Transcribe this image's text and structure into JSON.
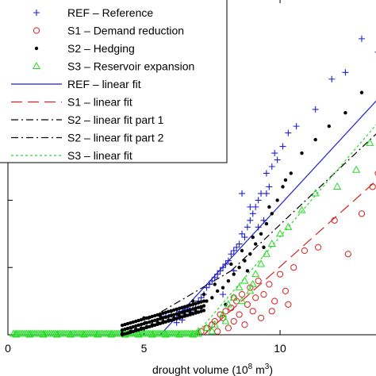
{
  "chart_data": {
    "type": "scatter",
    "xlabel": "drought volume (10",
    "xlabel_sup": "8",
    "xlabel_tail": " m",
    "xlabel_sup2": "3",
    "xlabel_end": ")",
    "xlim": [
      0,
      13.7
    ],
    "ylim": [
      0,
      5.0
    ],
    "xticks": [
      0,
      5,
      10
    ],
    "xtick_labels": [
      "0",
      "5",
      "10"
    ],
    "yticks": [
      0,
      1,
      2,
      3,
      4,
      5
    ],
    "grid": false,
    "legend_position": "top-left",
    "colors": {
      "REF": "#1f1fd0",
      "S1": "#d42020",
      "S2": "#000000",
      "S3": "#22dd22"
    },
    "series": [
      {
        "name": "REF – Reference",
        "marker": "plus",
        "color": "#1f1fd0",
        "points": [
          [
            5.8,
            0.28
          ],
          [
            6.0,
            0.3
          ],
          [
            6.2,
            0.3
          ],
          [
            6.3,
            0.35
          ],
          [
            6.4,
            0.32
          ],
          [
            6.5,
            0.36
          ],
          [
            6.6,
            0.38
          ],
          [
            6.7,
            0.34
          ],
          [
            6.2,
            0.18
          ],
          [
            6.4,
            0.22
          ],
          [
            6.6,
            0.4
          ],
          [
            6.8,
            0.45
          ],
          [
            6.9,
            0.4
          ],
          [
            7.0,
            0.5
          ],
          [
            7.1,
            0.55
          ],
          [
            7.2,
            0.6
          ],
          [
            7.3,
            0.7
          ],
          [
            7.4,
            0.75
          ],
          [
            7.5,
            0.8
          ],
          [
            7.6,
            0.85
          ],
          [
            7.7,
            0.9
          ],
          [
            7.8,
            0.95
          ],
          [
            7.9,
            1.0
          ],
          [
            8.0,
            1.05
          ],
          [
            8.1,
            1.1
          ],
          [
            8.2,
            1.2
          ],
          [
            8.3,
            1.25
          ],
          [
            8.4,
            1.3
          ],
          [
            8.5,
            1.35
          ],
          [
            8.6,
            1.5
          ],
          [
            8.7,
            1.45
          ],
          [
            8.8,
            1.6
          ],
          [
            8.9,
            1.7
          ],
          [
            9.0,
            1.8
          ],
          [
            9.1,
            1.9
          ],
          [
            9.2,
            2.0
          ],
          [
            9.3,
            2.1
          ],
          [
            9.4,
            1.7
          ],
          [
            9.5,
            2.4
          ],
          [
            9.6,
            2.2
          ],
          [
            9.7,
            2.5
          ],
          [
            9.9,
            2.6
          ],
          [
            10.1,
            2.8
          ],
          [
            10.3,
            3.0
          ],
          [
            10.6,
            3.1
          ],
          [
            11.3,
            3.35
          ],
          [
            11.9,
            3.8
          ],
          [
            12.4,
            3.9
          ],
          [
            13.0,
            4.4
          ],
          [
            13.6,
            4.2
          ],
          [
            13.7,
            5.0
          ],
          [
            8.6,
            2.1
          ],
          [
            8.9,
            1.9
          ],
          [
            9.5,
            2.1
          ],
          [
            9.8,
            2.7
          ],
          [
            9.2,
            1.6
          ],
          [
            7.9,
            0.6
          ],
          [
            8.3,
            0.95
          ]
        ]
      },
      {
        "name": "S1 – Demand reduction",
        "marker": "circle",
        "color": "#d42020",
        "points": [
          [
            7.3,
            0.1
          ],
          [
            7.5,
            0.15
          ],
          [
            7.6,
            0.2
          ],
          [
            7.7,
            0.05
          ],
          [
            7.8,
            0.3
          ],
          [
            7.9,
            0.25
          ],
          [
            8.0,
            0.35
          ],
          [
            8.1,
            0.1
          ],
          [
            8.2,
            0.4
          ],
          [
            8.3,
            0.2
          ],
          [
            8.4,
            0.5
          ],
          [
            8.5,
            0.3
          ],
          [
            8.6,
            0.6
          ],
          [
            8.7,
            0.15
          ],
          [
            8.8,
            0.45
          ],
          [
            8.9,
            0.7
          ],
          [
            9.0,
            0.35
          ],
          [
            9.1,
            0.55
          ],
          [
            9.2,
            0.8
          ],
          [
            9.3,
            0.25
          ],
          [
            9.4,
            0.6
          ],
          [
            9.6,
            0.75
          ],
          [
            9.8,
            0.5
          ],
          [
            10.0,
            0.9
          ],
          [
            10.2,
            0.65
          ],
          [
            10.5,
            1.0
          ],
          [
            10.9,
            1.25
          ],
          [
            11.4,
            1.3
          ],
          [
            12.0,
            1.7
          ],
          [
            12.5,
            1.2
          ],
          [
            13.0,
            1.8
          ],
          [
            13.4,
            2.2
          ],
          [
            13.6,
            2.4
          ],
          [
            8.3,
            0.55
          ],
          [
            7.1,
            0.05
          ],
          [
            9.7,
            0.35
          ],
          [
            10.3,
            0.45
          ]
        ]
      },
      {
        "name": "S2 – Hedging",
        "marker": "dot",
        "color": "#000000",
        "points": [
          [
            4.2,
            0.02
          ],
          [
            4.5,
            0.05
          ],
          [
            4.7,
            0.08
          ],
          [
            4.9,
            0.1
          ],
          [
            5.1,
            0.12
          ],
          [
            5.3,
            0.15
          ],
          [
            5.5,
            0.18
          ],
          [
            5.7,
            0.2
          ],
          [
            5.9,
            0.22
          ],
          [
            6.1,
            0.25
          ],
          [
            6.3,
            0.28
          ],
          [
            6.5,
            0.3
          ],
          [
            6.7,
            0.32
          ],
          [
            6.9,
            0.35
          ],
          [
            7.1,
            0.4
          ],
          [
            7.3,
            0.5
          ],
          [
            7.5,
            0.55
          ],
          [
            7.7,
            0.65
          ],
          [
            7.9,
            0.7
          ],
          [
            8.1,
            0.8
          ],
          [
            8.3,
            0.9
          ],
          [
            8.5,
            1.0
          ],
          [
            8.7,
            1.1
          ],
          [
            8.9,
            1.2
          ],
          [
            9.1,
            1.35
          ],
          [
            9.3,
            1.5
          ],
          [
            9.5,
            1.65
          ],
          [
            9.7,
            1.8
          ],
          [
            9.9,
            2.0
          ],
          [
            10.1,
            2.2
          ],
          [
            10.4,
            2.4
          ],
          [
            10.8,
            2.7
          ],
          [
            11.3,
            2.9
          ],
          [
            11.8,
            3.1
          ],
          [
            12.4,
            3.3
          ],
          [
            13.0,
            3.6
          ],
          [
            13.6,
            3.9
          ],
          [
            8.0,
            0.45
          ],
          [
            8.8,
            0.95
          ],
          [
            9.4,
            1.3
          ],
          [
            5.0,
            0.25
          ],
          [
            5.6,
            0.28
          ],
          [
            6.0,
            0.35
          ],
          [
            6.4,
            0.4
          ],
          [
            6.8,
            0.5
          ],
          [
            7.2,
            0.6
          ],
          [
            7.6,
            0.75
          ],
          [
            8.2,
            1.05
          ],
          [
            8.6,
            1.25
          ],
          [
            9.0,
            1.45
          ],
          [
            9.6,
            1.9
          ],
          [
            10.2,
            2.3
          ]
        ]
      },
      {
        "name": "S3 – Reservoir expansion",
        "marker": "triangle",
        "color": "#22dd22",
        "points": [
          [
            0.3,
            0.0
          ],
          [
            0.8,
            0.0
          ],
          [
            1.3,
            0.0
          ],
          [
            1.8,
            0.0
          ],
          [
            2.3,
            0.0
          ],
          [
            2.8,
            0.0
          ],
          [
            3.3,
            0.0
          ],
          [
            3.8,
            0.0
          ],
          [
            4.3,
            0.0
          ],
          [
            4.8,
            0.0
          ],
          [
            5.3,
            0.0
          ],
          [
            5.8,
            0.0
          ],
          [
            6.3,
            0.0
          ],
          [
            6.8,
            0.0
          ],
          [
            7.0,
            0.05
          ],
          [
            7.3,
            0.1
          ],
          [
            7.6,
            0.15
          ],
          [
            7.9,
            0.3
          ],
          [
            8.1,
            0.45
          ],
          [
            8.3,
            0.55
          ],
          [
            8.5,
            0.7
          ],
          [
            8.7,
            0.8
          ],
          [
            8.9,
            0.65
          ],
          [
            9.1,
            0.9
          ],
          [
            9.3,
            1.05
          ],
          [
            9.5,
            1.2
          ],
          [
            9.7,
            1.35
          ],
          [
            10.0,
            1.5
          ],
          [
            10.3,
            1.6
          ],
          [
            10.8,
            1.85
          ],
          [
            11.3,
            2.1
          ],
          [
            12.1,
            2.2
          ],
          [
            12.8,
            2.45
          ],
          [
            13.3,
            2.85
          ],
          [
            13.7,
            3.2
          ],
          [
            8.0,
            0.2
          ],
          [
            8.6,
            0.5
          ],
          [
            9.0,
            0.75
          ],
          [
            7.5,
            0.05
          ]
        ]
      }
    ],
    "fits": [
      {
        "name": "REF – linear fit",
        "color": "#1f1fd0",
        "dash": "solid",
        "from": [
          5.6,
          0.0
        ],
        "to": [
          13.7,
          3.55
        ]
      },
      {
        "name": "S1 – linear fit",
        "color": "#d42020",
        "dash": "long",
        "from": [
          7.2,
          0.0
        ],
        "to": [
          13.7,
          2.35
        ]
      },
      {
        "name": "S2 – linear fit part 1",
        "color": "#000000",
        "dash": "dashdot",
        "from": [
          4.2,
          0.0
        ],
        "to": [
          8.2,
          0.95
        ]
      },
      {
        "name": "S2 – linear fit part 2",
        "color": "#000000",
        "dash": "dashdot",
        "from": [
          8.2,
          0.95
        ],
        "to": [
          13.7,
          3.05
        ]
      },
      {
        "name": "S3 – linear fit",
        "color": "#22dd22",
        "dash": "dotted",
        "from": [
          6.9,
          0.0
        ],
        "to": [
          13.7,
          3.2
        ]
      }
    ],
    "legend": [
      {
        "label": "REF – Reference",
        "kind": "plus",
        "color": "#1f1fd0"
      },
      {
        "label": "S1 – Demand reduction",
        "kind": "circle",
        "color": "#d42020"
      },
      {
        "label": "S2 – Hedging",
        "kind": "dot",
        "color": "#000000"
      },
      {
        "label": "S3 – Reservoir expansion",
        "kind": "triangle",
        "color": "#22dd22"
      },
      {
        "label": "REF – linear fit",
        "kind": "solid",
        "color": "#1f1fd0"
      },
      {
        "label": "S1 – linear fit",
        "kind": "long",
        "color": "#d42020"
      },
      {
        "label": "S2 – linear fit part 1",
        "kind": "dashdot",
        "color": "#000000"
      },
      {
        "label": "S2 – linear fit part 2",
        "kind": "dashdot",
        "color": "#000000"
      },
      {
        "label": "S3 – linear fit",
        "kind": "dotted",
        "color": "#22dd22"
      }
    ]
  }
}
